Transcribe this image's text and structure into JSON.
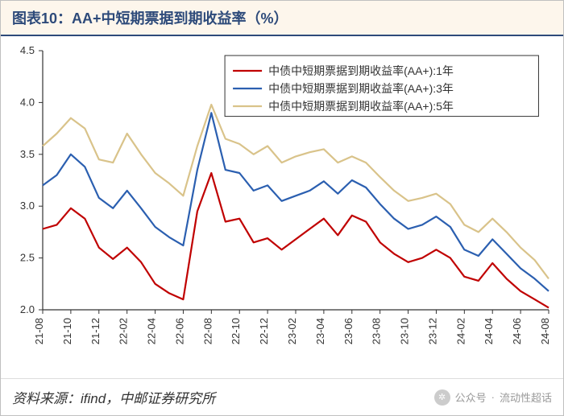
{
  "title": "图表10：AA+中短期票据到期收益率（%）",
  "source_label": "资料来源：ifind，中邮证券研究所",
  "watermark": {
    "platform": "公众号",
    "account": "流动性超话"
  },
  "chart": {
    "type": "line",
    "background_color": "#ffffff",
    "plot_border_color": "#333333",
    "grid_on": false,
    "title_fontsize": 18,
    "axis_fontsize": 13,
    "legend_fontsize": 14,
    "line_width": 2.2,
    "ylim": [
      2.0,
      4.5
    ],
    "ytick_step": 0.5,
    "yticks": [
      2.0,
      2.5,
      3.0,
      3.5,
      4.0,
      4.5
    ],
    "x_categories": [
      "21-08",
      "21-10",
      "21-12",
      "22-02",
      "22-04",
      "22-06",
      "22-08",
      "22-10",
      "22-12",
      "23-02",
      "23-04",
      "23-06",
      "23-08",
      "23-10",
      "23-12",
      "24-02",
      "24-04",
      "24-06",
      "24-08"
    ],
    "legend": {
      "position": "top-right",
      "box_border": "#333333",
      "box_fill": "#ffffff"
    },
    "series": [
      {
        "name": "中债中短期票据到期收益率(AA+):1年",
        "color": "#c00000",
        "values": [
          2.78,
          2.82,
          2.98,
          2.88,
          2.6,
          2.49,
          2.6,
          2.46,
          2.25,
          2.16,
          2.1,
          2.95,
          3.32,
          2.85,
          2.88,
          2.65,
          2.69,
          2.58,
          2.68,
          2.78,
          2.88,
          2.72,
          2.91,
          2.85,
          2.65,
          2.54,
          2.46,
          2.5,
          2.58,
          2.5,
          2.32,
          2.28,
          2.45,
          2.3,
          2.18,
          2.1,
          2.02
        ]
      },
      {
        "name": "中债中短期票据到期收益率(AA+):3年",
        "color": "#2b5fb0",
        "values": [
          3.2,
          3.3,
          3.5,
          3.38,
          3.08,
          2.98,
          3.15,
          2.98,
          2.8,
          2.7,
          2.62,
          3.35,
          3.9,
          3.35,
          3.32,
          3.15,
          3.2,
          3.05,
          3.1,
          3.15,
          3.24,
          3.12,
          3.25,
          3.18,
          3.02,
          2.88,
          2.78,
          2.82,
          2.9,
          2.8,
          2.58,
          2.52,
          2.68,
          2.54,
          2.4,
          2.3,
          2.18
        ]
      },
      {
        "name": "中债中短期票据到期收益率(AA+):5年",
        "color": "#d9c38a",
        "values": [
          3.58,
          3.7,
          3.85,
          3.75,
          3.45,
          3.42,
          3.7,
          3.5,
          3.32,
          3.22,
          3.1,
          3.58,
          3.98,
          3.65,
          3.6,
          3.5,
          3.58,
          3.42,
          3.48,
          3.52,
          3.55,
          3.42,
          3.48,
          3.42,
          3.28,
          3.15,
          3.05,
          3.08,
          3.12,
          3.02,
          2.82,
          2.75,
          2.88,
          2.75,
          2.6,
          2.48,
          2.3
        ]
      }
    ],
    "n_points": 37
  }
}
